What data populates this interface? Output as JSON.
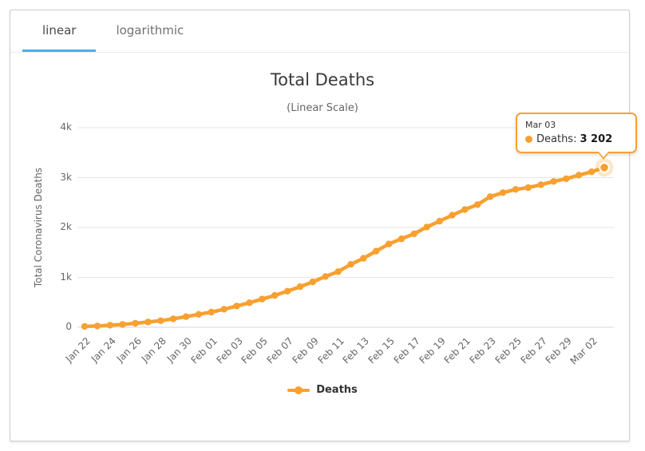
{
  "tabs": {
    "items": [
      {
        "label": "linear",
        "active": true
      },
      {
        "label": "logarithmic",
        "active": false
      }
    ]
  },
  "chart": {
    "title": "Total Deaths",
    "subtitle": "(Linear Scale)",
    "ylabel": "Total Coronavirus Deaths"
  },
  "legend": {
    "label": "Deaths"
  },
  "tooltip": {
    "date": "Mar 03",
    "series_label": "Deaths:",
    "value": "3 202"
  },
  "colors": {
    "series": "#f8a030",
    "series_halo": "rgba(248,160,48,0.25)",
    "tab_underline": "#41b6e2",
    "grid": "#e6e6e6",
    "axis_line": "#ccd6eb",
    "card_border": "#cccccc"
  },
  "chart_data": {
    "type": "line",
    "title": "Total Deaths",
    "subtitle": "(Linear Scale)",
    "xlabel": "",
    "ylabel": "Total Coronavirus Deaths",
    "ylim": [
      0,
      4000
    ],
    "grid": true,
    "legend_position": "bottom",
    "categories": [
      "Jan 22",
      "Jan 23",
      "Jan 24",
      "Jan 25",
      "Jan 26",
      "Jan 27",
      "Jan 28",
      "Jan 29",
      "Jan 30",
      "Jan 31",
      "Feb 01",
      "Feb 02",
      "Feb 03",
      "Feb 04",
      "Feb 05",
      "Feb 06",
      "Feb 07",
      "Feb 08",
      "Feb 09",
      "Feb 10",
      "Feb 11",
      "Feb 12",
      "Feb 13",
      "Feb 14",
      "Feb 15",
      "Feb 16",
      "Feb 17",
      "Feb 18",
      "Feb 19",
      "Feb 20",
      "Feb 21",
      "Feb 22",
      "Feb 23",
      "Feb 24",
      "Feb 25",
      "Feb 26",
      "Feb 27",
      "Feb 28",
      "Feb 29",
      "Mar 01",
      "Mar 02",
      "Mar 03"
    ],
    "series": [
      {
        "name": "Deaths",
        "color": "#f8a030",
        "values": [
          17,
          25,
          41,
          56,
          80,
          106,
          132,
          170,
          213,
          259,
          304,
          362,
          426,
          492,
          565,
          638,
          724,
          813,
          910,
          1018,
          1115,
          1261,
          1383,
          1526,
          1669,
          1775,
          1873,
          2009,
          2126,
          2247,
          2360,
          2460,
          2618,
          2699,
          2763,
          2800,
          2858,
          2923,
          2977,
          3050,
          3117,
          3202
        ]
      }
    ],
    "y_ticks": {
      "values": [
        0,
        1000,
        2000,
        3000,
        4000
      ],
      "labels": [
        "0",
        "1k",
        "2k",
        "3k",
        "4k"
      ]
    },
    "x_tick_labels": [
      "Jan 22",
      "Jan 24",
      "Jan 26",
      "Jan 28",
      "Jan 30",
      "Feb 01",
      "Feb 03",
      "Feb 05",
      "Feb 07",
      "Feb 09",
      "Feb 11",
      "Feb 13",
      "Feb 15",
      "Feb 17",
      "Feb 19",
      "Feb 21",
      "Feb 23",
      "Feb 25",
      "Feb 27",
      "Feb 29",
      "Mar 02"
    ],
    "highlighted_point": {
      "category": "Mar 03",
      "value": 3202
    }
  }
}
